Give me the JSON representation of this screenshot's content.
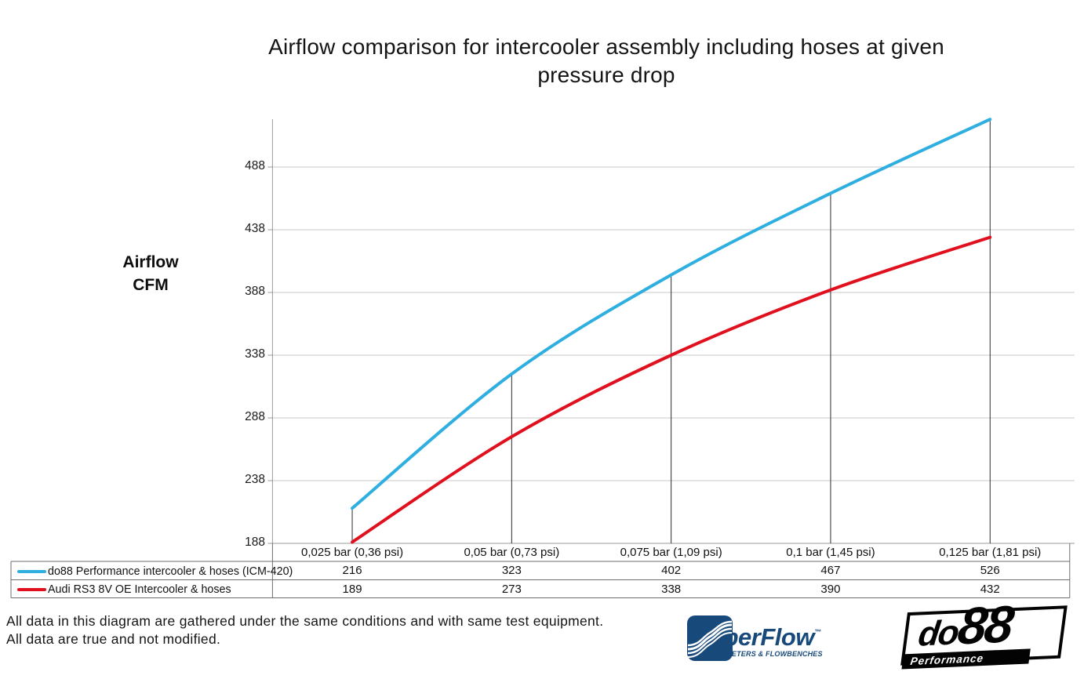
{
  "title_lines": [
    "Airflow comparison for intercooler assembly including hoses at given",
    "pressure drop"
  ],
  "y_axis_label_lines": [
    "Airflow",
    "CFM"
  ],
  "footer_lines": [
    "All data in this diagram are gathered under the same conditions and with same test equipment.",
    "All data are true and not modified."
  ],
  "logos": {
    "superflow": {
      "name": "SuperFlow",
      "trademark": "™",
      "tagline": "DYNAMOMETERS & FLOWBENCHES",
      "color": "#17497B"
    },
    "do88": {
      "name_part1": "do",
      "name_part2": "88",
      "tagline": "Performance",
      "color": "#030303"
    }
  },
  "chart_data": {
    "type": "line",
    "title": "Airflow comparison for intercooler assembly including hoses at given pressure drop",
    "xlabel": "",
    "ylabel": "Airflow CFM",
    "categories": [
      "0,025 bar (0,36 psi)",
      "0,05 bar (0,73 psi)",
      "0,075 bar (1,09 psi)",
      "0,1 bar (1,45 psi)",
      "0,125 bar (1,81 psi)"
    ],
    "series": [
      {
        "name": "do88 Performance intercooler & hoses (ICM-420)",
        "color": "#2FAFE0",
        "values": [
          216,
          323,
          402,
          467,
          526
        ]
      },
      {
        "name": "Audi RS3 8V OE Intercooler & hoses",
        "color": "#E0101E",
        "values": [
          189,
          273,
          338,
          390,
          432
        ]
      }
    ],
    "yticks": [
      188,
      238,
      288,
      338,
      388,
      438,
      488
    ],
    "ylim": [
      188,
      531
    ],
    "grid": true,
    "smooth": true,
    "drop_lines": true,
    "legend_position": "bottom-table"
  }
}
